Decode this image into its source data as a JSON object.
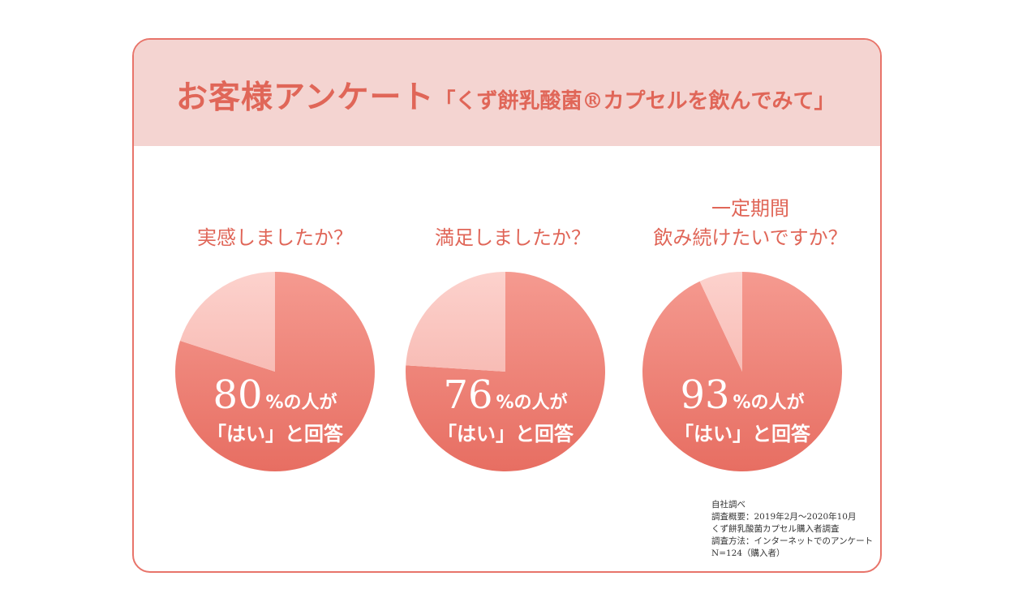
{
  "header": {
    "title": "お客様アンケート",
    "subtitle": "「くず餅乳酸菌®カプセルを飲んでみて」"
  },
  "questions": [
    {
      "lines": [
        "実感しましたか？"
      ]
    },
    {
      "lines": [
        "満足しましたか？"
      ]
    },
    {
      "lines": [
        "一定期間",
        "飲み続けたいですか？"
      ]
    }
  ],
  "chart_data": [
    {
      "type": "pie",
      "title": "実感しましたか？",
      "values": [
        80,
        20
      ],
      "big_label": "80",
      "unit_label": "%の人が",
      "answer_label": "「はい」と回答"
    },
    {
      "type": "pie",
      "title": "満足しましたか？",
      "values": [
        76,
        24
      ],
      "big_label": "76",
      "unit_label": "%の人が",
      "answer_label": "「はい」と回答"
    },
    {
      "type": "pie",
      "title": "一定期間 飲み続けたいですか？",
      "values": [
        93,
        7
      ],
      "big_label": "93",
      "unit_label": "%の人が",
      "answer_label": "「はい」と回答"
    }
  ],
  "footnote": {
    "lines": [
      "自社調べ",
      "調査概要：2019年2月〜2020年10月",
      "くず餅乳酸菌カプセル購入者調査",
      "調査方法：インターネットでのアンケート",
      "N=124（購入者）"
    ]
  },
  "colors": {
    "accent": "#e06658",
    "header_bg": "#f4d4d1",
    "border": "#e8746a",
    "yes_top": "#f59a90",
    "yes_bottom": "#e76e62",
    "no_slice": "#fbc8c2"
  }
}
